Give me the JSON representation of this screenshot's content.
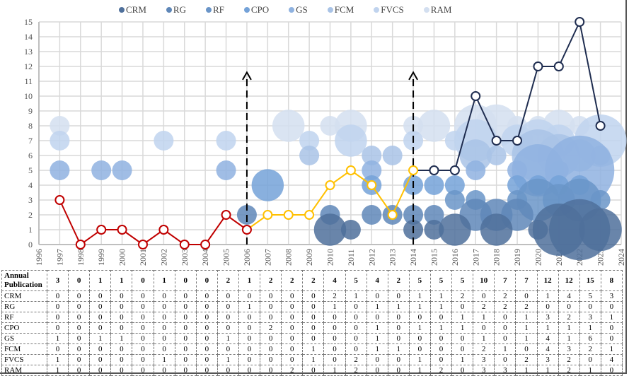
{
  "chart_data": {
    "type": "bubble-line",
    "title": "",
    "xlabel": "",
    "ylabel": "",
    "xlim": [
      1996,
      2024
    ],
    "ylim": [
      0,
      15
    ],
    "x_ticks": [
      1996,
      1997,
      1998,
      1999,
      2000,
      2001,
      2002,
      2003,
      2004,
      2005,
      2006,
      2007,
      2008,
      2009,
      2010,
      2011,
      2012,
      2013,
      2014,
      2015,
      2016,
      2017,
      2018,
      2019,
      2020,
      2021,
      2022,
      2023,
      2024
    ],
    "y_ticks": [
      0,
      1,
      2,
      3,
      4,
      5,
      6,
      7,
      8,
      9,
      10,
      11,
      12,
      13,
      14,
      15
    ],
    "grid": true,
    "legend_position": "top",
    "years": [
      1997,
      1998,
      1999,
      2000,
      2001,
      2002,
      2003,
      2004,
      2005,
      2006,
      2007,
      2008,
      2009,
      2010,
      2011,
      2012,
      2013,
      2014,
      2015,
      2016,
      2017,
      2018,
      2019,
      2020,
      2021,
      2022,
      2023
    ],
    "annual_label": "Annual Publication",
    "annual": [
      3,
      0,
      1,
      1,
      0,
      1,
      0,
      0,
      2,
      1,
      2,
      2,
      2,
      4,
      5,
      4,
      2,
      5,
      5,
      5,
      10,
      7,
      7,
      12,
      12,
      15,
      8
    ],
    "line_segments": [
      {
        "from": 1997,
        "to": 2006,
        "color": "#c00000"
      },
      {
        "from": 2006,
        "to": 2014,
        "color": "#ffc000"
      },
      {
        "from": 2014,
        "to": 2023,
        "color": "#1f2d50"
      }
    ],
    "markers": [
      2006,
      2014
    ],
    "series": [
      {
        "name": "CRM",
        "row": 1,
        "color": "#4f709b",
        "values": [
          0,
          0,
          0,
          0,
          0,
          0,
          0,
          0,
          0,
          0,
          0,
          0,
          0,
          2,
          1,
          0,
          0,
          1,
          1,
          2,
          0,
          2,
          0,
          1,
          4,
          5,
          3
        ]
      },
      {
        "name": "RG",
        "row": 2,
        "color": "#5f87b8",
        "values": [
          0,
          0,
          0,
          0,
          0,
          0,
          0,
          0,
          0,
          1,
          0,
          0,
          0,
          1,
          0,
          1,
          1,
          1,
          1,
          0,
          2,
          2,
          2,
          0,
          0,
          0,
          0
        ]
      },
      {
        "name": "RF",
        "row": 3,
        "color": "#6a95c8",
        "values": [
          0,
          0,
          0,
          0,
          0,
          0,
          0,
          0,
          0,
          0,
          0,
          0,
          0,
          0,
          0,
          0,
          0,
          0,
          0,
          1,
          1,
          0,
          1,
          3,
          2,
          3,
          1
        ]
      },
      {
        "name": "CPO",
        "row": 4,
        "color": "#74a2d8",
        "values": [
          0,
          0,
          0,
          0,
          0,
          0,
          0,
          0,
          0,
          0,
          2,
          0,
          0,
          0,
          0,
          1,
          0,
          1,
          1,
          1,
          0,
          0,
          1,
          1,
          1,
          1,
          0
        ]
      },
      {
        "name": "GS",
        "row": 5,
        "color": "#8fb2e0",
        "values": [
          1,
          0,
          1,
          1,
          0,
          0,
          0,
          0,
          1,
          0,
          0,
          0,
          0,
          0,
          0,
          1,
          0,
          0,
          0,
          0,
          1,
          0,
          1,
          4,
          1,
          6,
          0
        ]
      },
      {
        "name": "FCM",
        "row": 6,
        "color": "#a9c3e6",
        "values": [
          0,
          0,
          0,
          0,
          0,
          0,
          0,
          0,
          0,
          0,
          0,
          0,
          1,
          0,
          0,
          1,
          1,
          0,
          0,
          0,
          2,
          1,
          0,
          4,
          3,
          2,
          1
        ]
      },
      {
        "name": "FVCS",
        "row": 7,
        "color": "#c0d3ee",
        "values": [
          1,
          0,
          0,
          0,
          0,
          1,
          0,
          0,
          1,
          0,
          0,
          0,
          1,
          0,
          2,
          0,
          0,
          1,
          0,
          1,
          3,
          0,
          2,
          3,
          2,
          0,
          4
        ]
      },
      {
        "name": "RAM",
        "row": 8,
        "color": "#d3dff0",
        "values": [
          1,
          0,
          0,
          0,
          0,
          0,
          0,
          0,
          0,
          0,
          0,
          2,
          0,
          1,
          2,
          0,
          0,
          1,
          2,
          0,
          3,
          3,
          1,
          1,
          2,
          1,
          0
        ]
      }
    ]
  }
}
